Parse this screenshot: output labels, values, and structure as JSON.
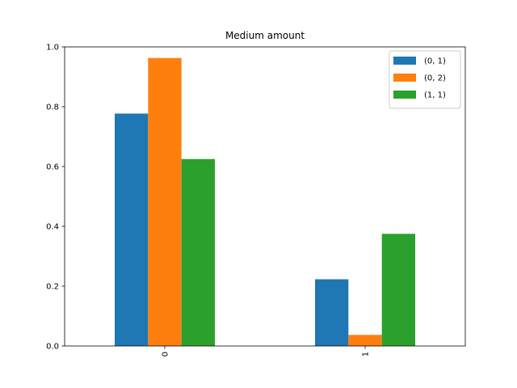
{
  "chart_data": {
    "type": "bar",
    "title": "Medium amount",
    "xlabel": "",
    "ylabel": "",
    "categories": [
      "0",
      "1"
    ],
    "series": [
      {
        "name": "(0, 1)",
        "color": "#1f77b4",
        "values": [
          0.777,
          0.223
        ]
      },
      {
        "name": "(0, 2)",
        "color": "#ff7f0e",
        "values": [
          0.963,
          0.037
        ]
      },
      {
        "name": "(1, 1)",
        "color": "#2ca02c",
        "values": [
          0.625,
          0.375
        ]
      }
    ],
    "ylim": [
      0,
      1.0
    ],
    "yticks": [
      "0.0",
      "0.2",
      "0.4",
      "0.6",
      "0.8",
      "1.0"
    ],
    "xtick_rotation": "vertical",
    "legend_position": "top-right",
    "grid": false
  }
}
